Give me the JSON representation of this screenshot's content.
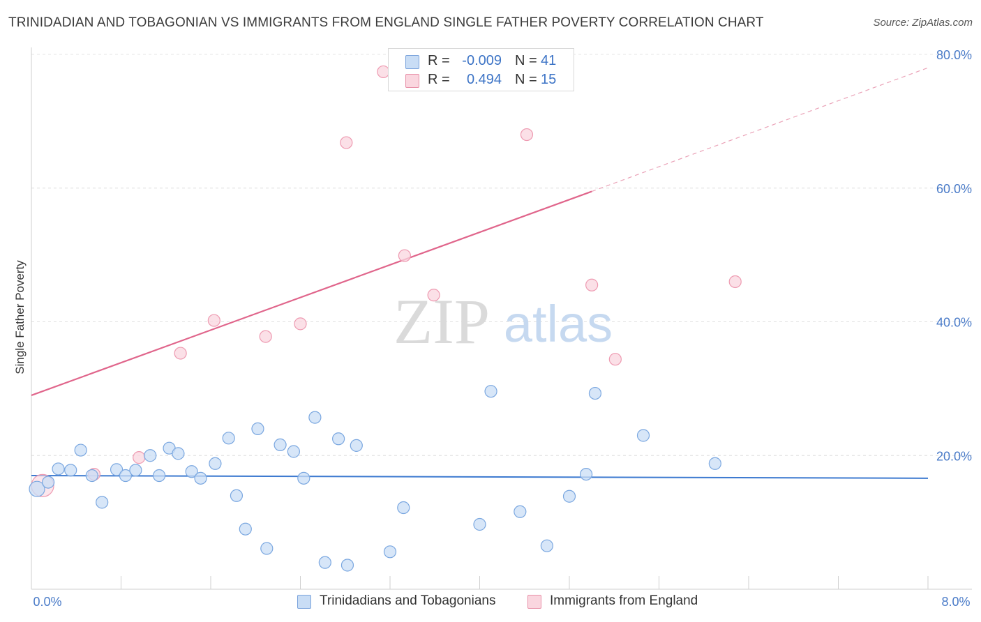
{
  "title": "TRINIDADIAN AND TOBAGONIAN VS IMMIGRANTS FROM ENGLAND SINGLE FATHER POVERTY CORRELATION CHART",
  "source": "Source: ZipAtlas.com",
  "watermark": {
    "zip": "ZIP",
    "atlas": "atlas"
  },
  "legend": {
    "rows": [
      {
        "r_label": "R =",
        "r_value": "-0.009",
        "n_label": "N =",
        "n_value": "41",
        "color": "#a9c8ef",
        "border": "#7aa3dc"
      },
      {
        "r_label": "R =",
        "r_value": "0.494",
        "n_label": "N =",
        "n_value": "15",
        "color": "#f7c1cf",
        "border": "#e890a8"
      }
    ]
  },
  "bottom_legend": [
    {
      "label": "Trinidadians and Tobagonians",
      "color": "#a9c8ef",
      "border": "#7aa3dc"
    },
    {
      "label": "Immigrants from England",
      "color": "#f7c1cf",
      "border": "#e890a8"
    }
  ],
  "chart_data": {
    "type": "scatter",
    "xlabel": "",
    "ylabel": "Single Father Poverty",
    "xlim": [
      0,
      8
    ],
    "ylim": [
      0,
      80
    ],
    "x_tick_labels": [
      "0.0%",
      "8.0%"
    ],
    "y_ticks": [
      20,
      40,
      60,
      80
    ],
    "y_tick_labels": [
      "20.0%",
      "40.0%",
      "60.0%",
      "80.0%"
    ],
    "grid": "horizontal dashed",
    "series": [
      {
        "name": "Trinidadians and Tobagonians",
        "color": "#7aa7e0",
        "fill": "#c9ddf5",
        "points": [
          [
            0.05,
            15.0
          ],
          [
            0.15,
            16.0
          ],
          [
            0.24,
            18.0
          ],
          [
            0.35,
            17.8
          ],
          [
            0.44,
            20.8
          ],
          [
            0.54,
            17.0
          ],
          [
            0.63,
            13.0
          ],
          [
            0.76,
            17.9
          ],
          [
            0.84,
            17.0
          ],
          [
            0.93,
            17.8
          ],
          [
            1.06,
            20.0
          ],
          [
            1.14,
            17.0
          ],
          [
            1.23,
            21.1
          ],
          [
            1.31,
            20.3
          ],
          [
            1.43,
            17.6
          ],
          [
            1.51,
            16.6
          ],
          [
            1.64,
            18.8
          ],
          [
            1.76,
            22.6
          ],
          [
            1.83,
            14.0
          ],
          [
            1.91,
            9.0
          ],
          [
            2.02,
            24.0
          ],
          [
            2.1,
            6.1
          ],
          [
            2.22,
            21.6
          ],
          [
            2.34,
            20.6
          ],
          [
            2.43,
            16.6
          ],
          [
            2.53,
            25.7
          ],
          [
            2.62,
            4.0
          ],
          [
            2.74,
            22.5
          ],
          [
            2.82,
            3.6
          ],
          [
            2.9,
            21.5
          ],
          [
            3.2,
            5.6
          ],
          [
            3.32,
            12.2
          ],
          [
            4.0,
            9.7
          ],
          [
            4.1,
            29.6
          ],
          [
            4.36,
            11.6
          ],
          [
            4.6,
            6.5
          ],
          [
            4.8,
            13.9
          ],
          [
            4.95,
            17.2
          ],
          [
            5.03,
            29.3
          ],
          [
            5.46,
            23.0
          ],
          [
            6.1,
            18.8
          ]
        ],
        "trend": {
          "x0": 0,
          "y0": 17.0,
          "x1": 8,
          "y1": 16.6
        }
      },
      {
        "name": "Immigrants from England",
        "color": "#ee9ab1",
        "fill": "#fad6df",
        "points": [
          [
            0.1,
            15.5
          ],
          [
            0.56,
            17.2
          ],
          [
            0.96,
            19.7
          ],
          [
            1.33,
            35.3
          ],
          [
            1.63,
            40.2
          ],
          [
            2.09,
            37.8
          ],
          [
            2.4,
            39.7
          ],
          [
            2.81,
            66.8
          ],
          [
            3.14,
            77.4
          ],
          [
            3.33,
            49.9
          ],
          [
            3.59,
            44.0
          ],
          [
            4.42,
            68.0
          ],
          [
            5.0,
            45.5
          ],
          [
            5.21,
            34.4
          ],
          [
            6.28,
            46.0
          ]
        ],
        "trend": {
          "x0": 0,
          "y0": 29.0,
          "x1": 5.0,
          "y1": 59.5,
          "dash_x1": 8.0,
          "dash_y1": 78.0
        }
      }
    ]
  }
}
